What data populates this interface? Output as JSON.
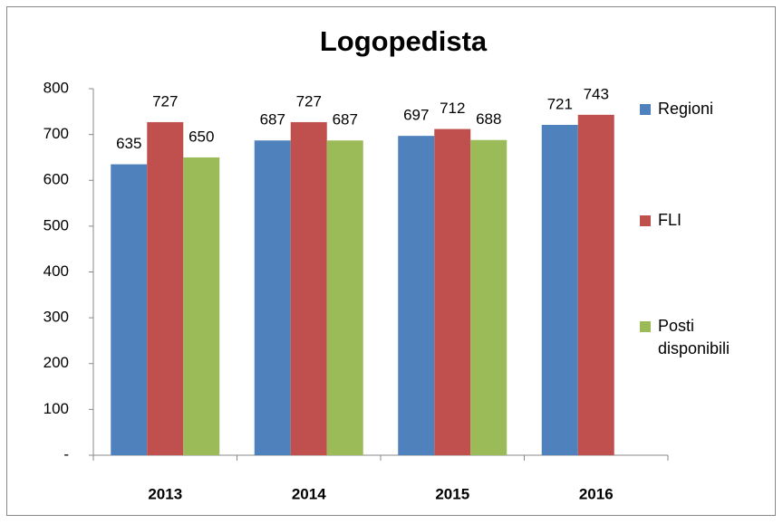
{
  "chart_data": {
    "type": "bar",
    "title": "Logopedista",
    "categories": [
      "2013",
      "2014",
      "2015",
      "2016"
    ],
    "series": [
      {
        "name": "Regioni",
        "color": "#4f81bd",
        "values": [
          635,
          687,
          697,
          721
        ]
      },
      {
        "name": "FLI",
        "color": "#c0504d",
        "values": [
          727,
          727,
          712,
          743
        ]
      },
      {
        "name": "Posti disponibili",
        "color": "#9bbb59",
        "values": [
          650,
          687,
          688,
          null
        ]
      }
    ],
    "ylim": [
      0,
      800
    ],
    "yticks": [
      {
        "value": 0,
        "label": "-"
      },
      100,
      200,
      300,
      400,
      500,
      600,
      700,
      800
    ],
    "legend": "right"
  }
}
